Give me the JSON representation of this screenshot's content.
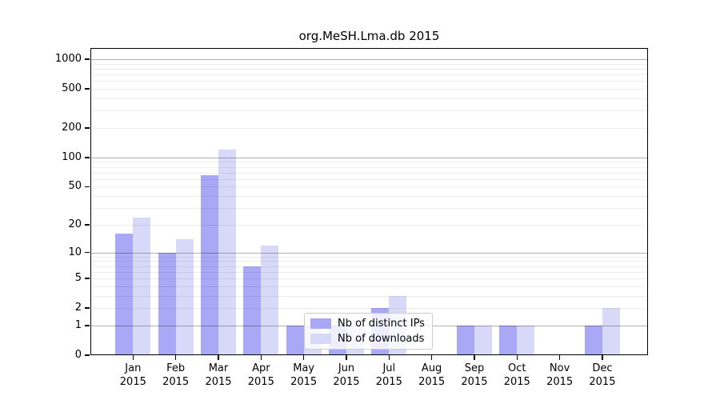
{
  "title": "org.MeSH.Lma.db 2015",
  "chart_data": {
    "type": "bar",
    "title": "org.MeSH.Lma.db 2015",
    "y_scale": "log10(1+x)",
    "categories": [
      "Jan 2015",
      "Feb 2015",
      "Mar 2015",
      "Apr 2015",
      "May 2015",
      "Jun 2015",
      "Jul 2015",
      "Aug 2015",
      "Sep 2015",
      "Oct 2015",
      "Nov 2015",
      "Dec 2015"
    ],
    "series": [
      {
        "name": "Nb of distinct IPs",
        "color": "#a8a8f7",
        "values": [
          16,
          10,
          66,
          7,
          1,
          1,
          2,
          0,
          1,
          1,
          0,
          1
        ]
      },
      {
        "name": "Nb of downloads",
        "color": "#d8d8f9",
        "values": [
          24,
          14,
          120,
          12,
          1,
          1,
          3,
          0,
          1,
          1,
          0,
          2
        ]
      }
    ],
    "y_ticks": [
      0,
      1,
      2,
      5,
      10,
      20,
      50,
      100,
      200,
      500,
      1000
    ],
    "y_major_gridlines": [
      1,
      10,
      100,
      1000
    ],
    "ylim_transformed_max": 3.114,
    "grid": "on",
    "legend_position": "lower-center-left",
    "xlabel": "",
    "ylabel": ""
  }
}
